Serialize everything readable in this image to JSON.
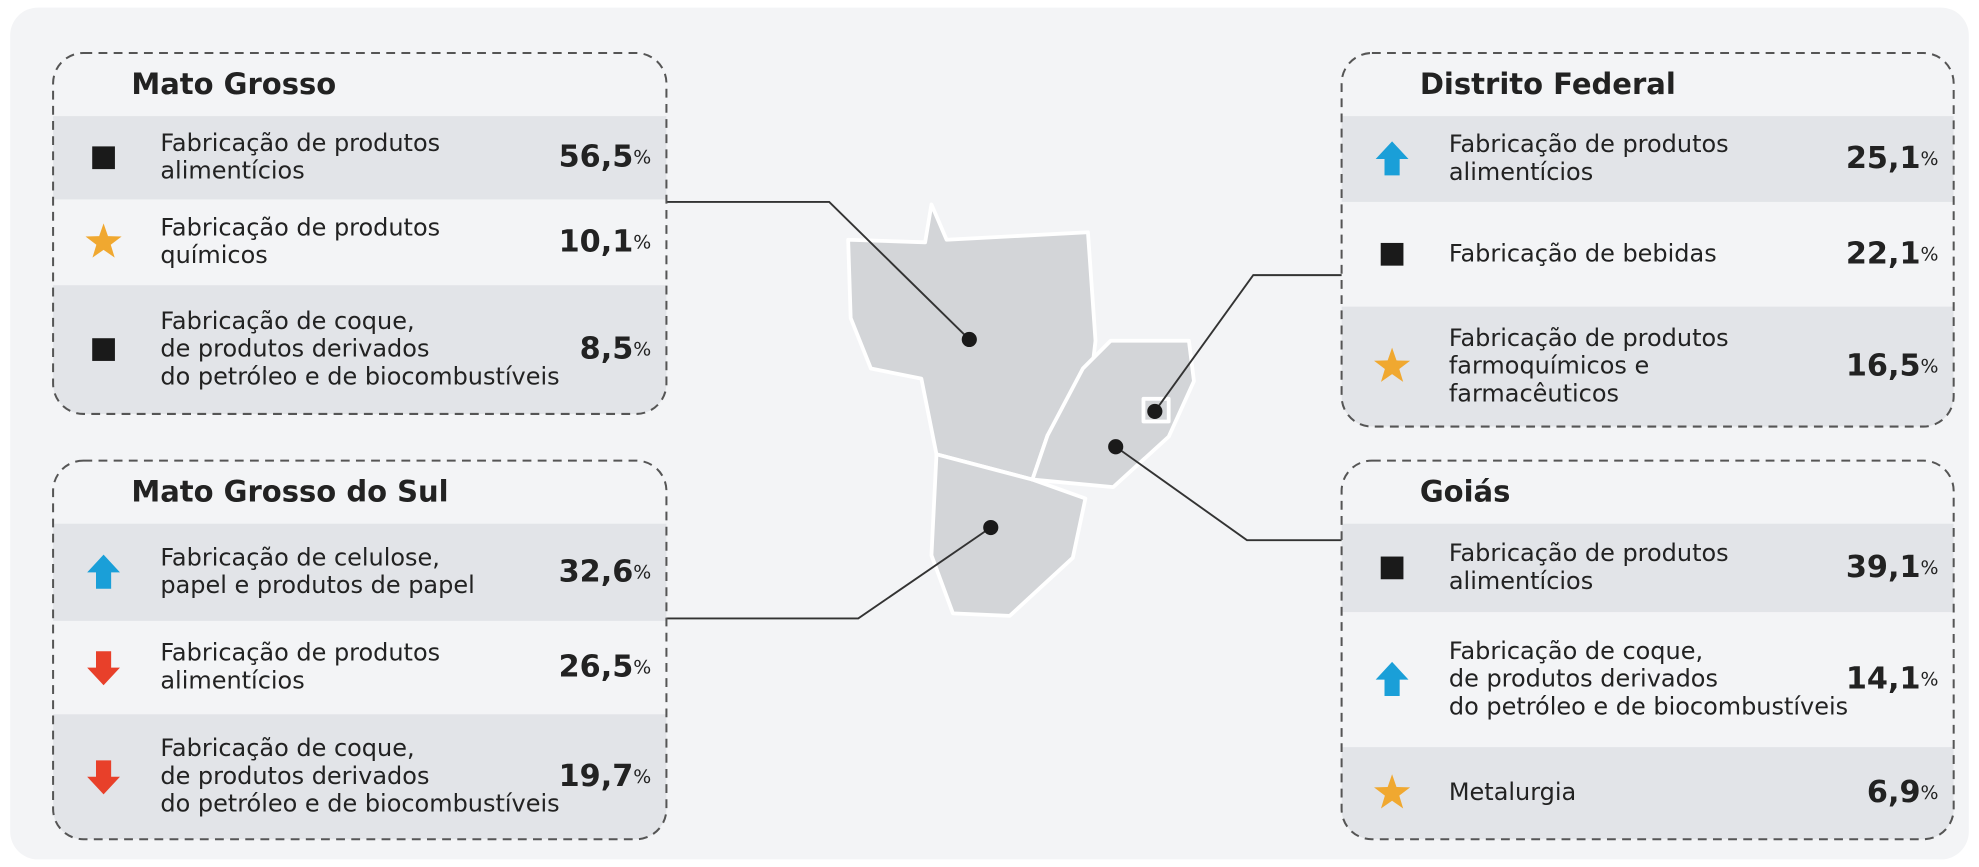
{
  "panels": [
    {
      "title": "Mato Grosso",
      "rows": [
        {
          "icon": "square",
          "lines": [
            "Fabricação de produtos",
            "alimentícios"
          ],
          "value": "56,5",
          "unit": "%"
        },
        {
          "icon": "star",
          "lines": [
            "Fabricação de produtos",
            "químicos"
          ],
          "value": "10,1",
          "unit": "%"
        },
        {
          "icon": "square",
          "lines": [
            "Fabricação de coque,",
            "de produtos derivados",
            "do petróleo e de biocombustíveis"
          ],
          "value": "8,5",
          "unit": "%"
        }
      ]
    },
    {
      "title": "Mato Grosso do Sul",
      "rows": [
        {
          "icon": "up",
          "lines": [
            "Fabricação de celulose,",
            "papel e produtos de papel"
          ],
          "value": "32,6",
          "unit": "%"
        },
        {
          "icon": "down",
          "lines": [
            "Fabricação de produtos",
            "alimentícios"
          ],
          "value": "26,5",
          "unit": "%"
        },
        {
          "icon": "down",
          "lines": [
            "Fabricação de coque,",
            "de produtos derivados",
            "do petróleo e de biocombustíveis"
          ],
          "value": "19,7",
          "unit": "%"
        }
      ]
    },
    {
      "title": "Distrito Federal",
      "rows": [
        {
          "icon": "up",
          "lines": [
            "Fabricação de produtos",
            "alimentícios"
          ],
          "value": "25,1",
          "unit": "%"
        },
        {
          "icon": "square",
          "lines": [
            "Fabricação de bebidas"
          ],
          "value": "22,1",
          "unit": "%"
        },
        {
          "icon": "star",
          "lines": [
            "Fabricação de produtos",
            "farmoquímicos e",
            "farmacêuticos"
          ],
          "value": "16,5",
          "unit": "%"
        }
      ]
    },
    {
      "title": "Goiás",
      "rows": [
        {
          "icon": "square",
          "lines": [
            "Fabricação de produtos",
            "alimentícios"
          ],
          "value": "39,1",
          "unit": "%"
        },
        {
          "icon": "up",
          "lines": [
            "Fabricação de coque,",
            "de produtos derivados",
            "do petróleo e de biocombustíveis"
          ],
          "value": "14,1",
          "unit": "%"
        },
        {
          "icon": "star",
          "lines": [
            "Metalurgia"
          ],
          "value": "6,9",
          "unit": "%"
        }
      ]
    }
  ]
}
